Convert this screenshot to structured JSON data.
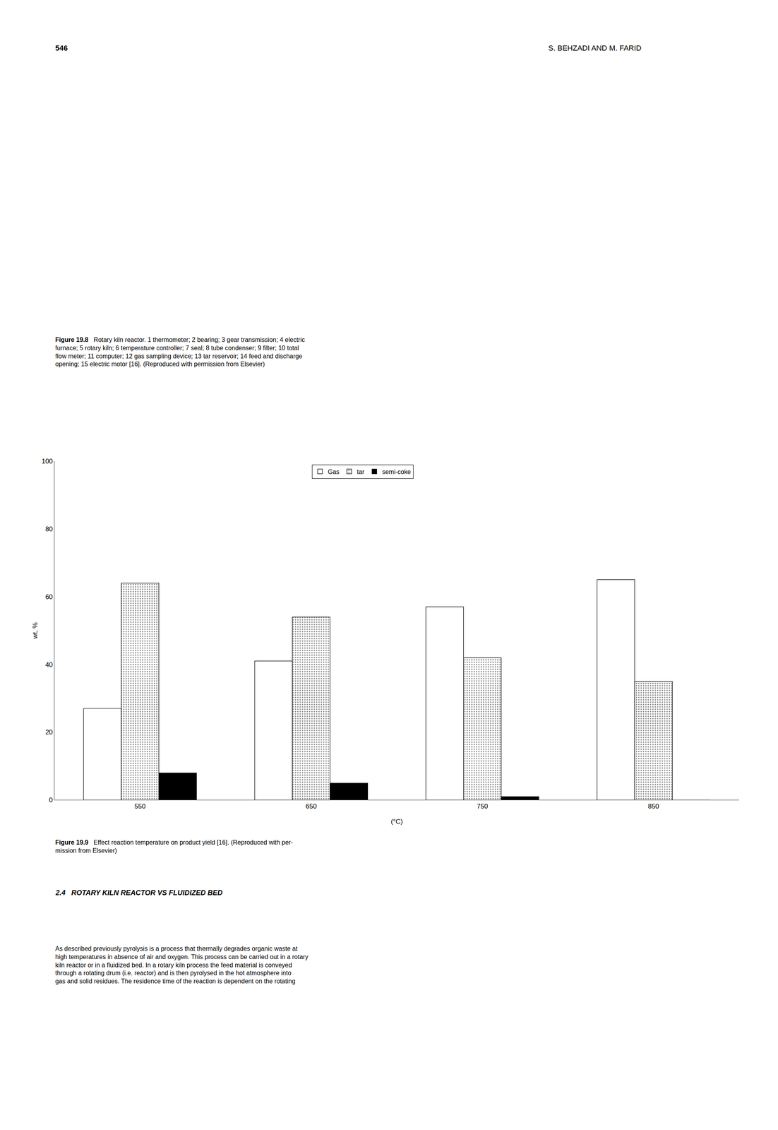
{
  "chart_data": {
    "type": "bar",
    "categories": [
      "550",
      "650",
      "750",
      "850"
    ],
    "series": [
      {
        "name": "Gas",
        "color": "#ffffff",
        "values": [
          27,
          41,
          57,
          65
        ]
      },
      {
        "name": "tar",
        "color": "#ffffff",
        "marker": "dotted",
        "values": [
          64,
          54,
          42,
          35
        ]
      },
      {
        "name": "semi-coke",
        "color": "#000000",
        "values": [
          8,
          5,
          1,
          0
        ]
      }
    ],
    "xlabel": "(°C)",
    "ylabel": "wt, %",
    "ylim": [
      0,
      100
    ],
    "yticks": [
      0,
      20,
      40,
      60,
      80,
      100
    ],
    "grid": false,
    "legend": "upper center",
    "annotations": [
      "546",
      "S. BEHZADI AND M. FARID",
      "Figure 19.8",
      "   Rotary kiln reactor. 1 thermometer; 2 bearing; 3 gear transmission; 4 electric\nfurnace; 5 rotary kiln; 6 temperature controller; 7 seal; 8 tube condenser; 9 filter; 10 total\nflow meter; 11 computer; 12 gas sampling device; 13 tar reservoir; 14 feed and discharge\nopening; 15 electric motor [16]. (Reproduced with permission from Elsevier)",
      "Figure 19.9",
      "   Effect reaction temperature on product yield [16]. (Reproduced with per-\nmission from Elsevier)",
      "2.4   ROTARY KILN REACTOR VS FLUIDIZED BED",
      "As described previously pyrolysis is a process that thermally degrades organic waste at\nhigh temperatures in absence of air and oxygen. This process can be carried out in a rotary\nkiln reactor or in a fluidized bed. In a rotary kiln process the feed material is conveyed\nthrough a rotating drum (i.e. reactor) and is then pyrolysed in the hot atmosphere into\ngas and solid residues. The residence time of the reaction is dependent on the rotating"
    ]
  }
}
